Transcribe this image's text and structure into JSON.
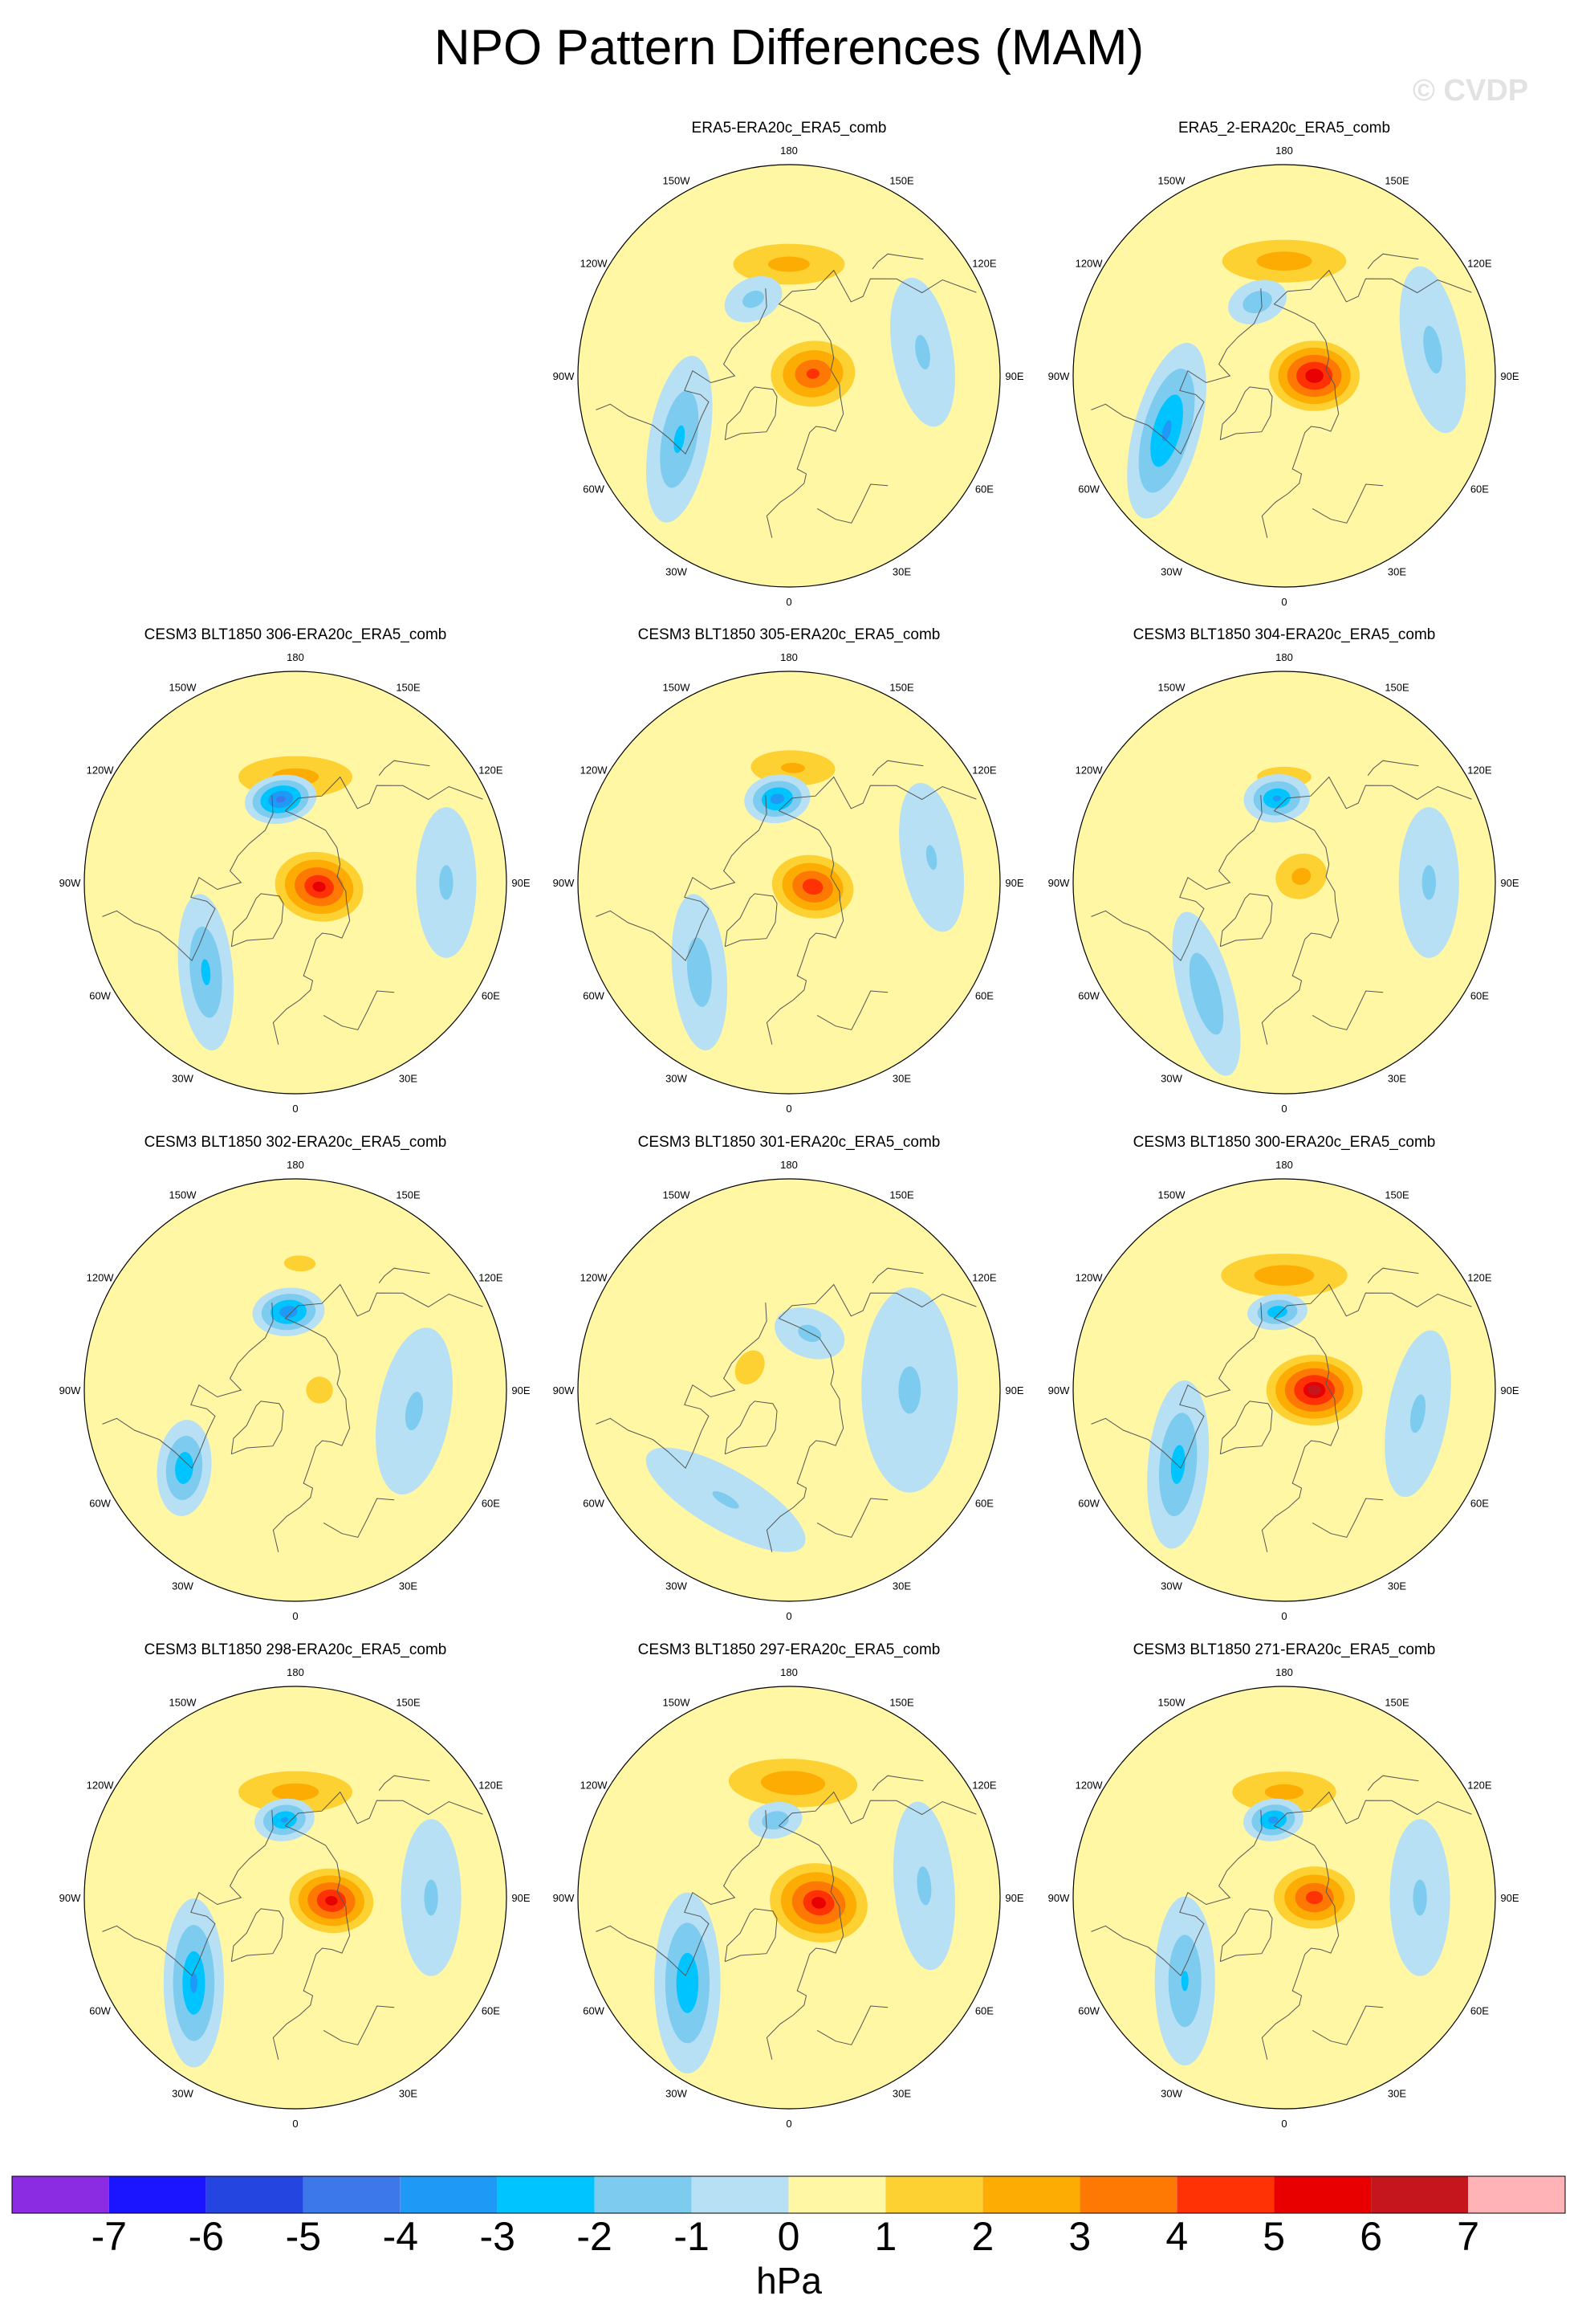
{
  "title": "NPO Pattern Differences (MAM)",
  "watermark": "© CVDP",
  "longitude_labels": {
    "lon_180": "180",
    "lon_150e": "150E",
    "lon_120e": "120E",
    "lon_90e": "90E",
    "lon_60e": "60E",
    "lon_30e": "30E",
    "lon_0": "0",
    "lon_30w": "30W",
    "lon_60w": "60W",
    "lon_90w": "90W",
    "lon_120w": "120W",
    "lon_150w": "150W"
  },
  "panels": [
    {
      "title": "ERA5-ERA20c_ERA5_comb",
      "features": [
        {
          "lat": 53,
          "lon": 180,
          "amp": 2.6,
          "w": 30,
          "h": 11,
          "rot": 0
        },
        {
          "lat": 62,
          "lon": 205,
          "amp": -1.6,
          "w": 10,
          "h": 7,
          "rot": 0
        },
        {
          "lat": 82,
          "lon": 95,
          "amp": 4.5,
          "w": 14,
          "h": 18,
          "rot": 0
        },
        {
          "lat": 48,
          "lon": 300,
          "amp": -2.4,
          "w": 28,
          "h": 10,
          "rot": 40
        },
        {
          "lat": 45,
          "lon": 100,
          "amp": -1.3,
          "w": 25,
          "h": 10,
          "rot": 0
        }
      ]
    },
    {
      "title": "ERA5_2-ERA20c_ERA5_comb",
      "features": [
        {
          "lat": 52,
          "lon": 180,
          "amp": 2.8,
          "w": 32,
          "h": 11,
          "rot": 0
        },
        {
          "lat": 64,
          "lon": 200,
          "amp": -2.0,
          "w": 10,
          "h": 7,
          "rot": 0
        },
        {
          "lat": 80,
          "lon": 90,
          "amp": 6.0,
          "w": 14,
          "h": 18,
          "rot": 0
        },
        {
          "lat": 47,
          "lon": 295,
          "amp": -3.4,
          "w": 30,
          "h": 11,
          "rot": 40
        },
        {
          "lat": 40,
          "lon": 100,
          "amp": -1.4,
          "w": 28,
          "h": 10,
          "rot": 0
        }
      ]
    },
    {
      "title": "CESM3 BLT1850 306-ERA20c_ERA5_comb",
      "features": [
        {
          "lat": 55,
          "lon": 180,
          "amp": 2.7,
          "w": 30,
          "h": 11,
          "rot": 0
        },
        {
          "lat": 62,
          "lon": 190,
          "amp": -4.6,
          "w": 12,
          "h": 8,
          "rot": 0
        },
        {
          "lat": 82,
          "lon": 80,
          "amp": 5.5,
          "w": 14,
          "h": 18,
          "rot": 0
        },
        {
          "lat": 48,
          "lon": 315,
          "amp": -2.4,
          "w": 26,
          "h": 9,
          "rot": 40
        },
        {
          "lat": 40,
          "lon": 90,
          "amp": -1.3,
          "w": 25,
          "h": 10,
          "rot": 0
        }
      ]
    },
    {
      "title": "CESM3 BLT1850 305-ERA20c_ERA5_comb",
      "features": [
        {
          "lat": 52,
          "lon": 178,
          "amp": 2.4,
          "w": 24,
          "h": 10,
          "rot": 0
        },
        {
          "lat": 62,
          "lon": 188,
          "amp": -3.8,
          "w": 11,
          "h": 8,
          "rot": 0
        },
        {
          "lat": 82,
          "lon": 80,
          "amp": 5.0,
          "w": 13,
          "h": 17,
          "rot": 0
        },
        {
          "lat": 48,
          "lon": 315,
          "amp": -1.8,
          "w": 26,
          "h": 9,
          "rot": 40
        },
        {
          "lat": 42,
          "lon": 100,
          "amp": -1.2,
          "w": 25,
          "h": 10,
          "rot": 0
        }
      ]
    },
    {
      "title": "CESM3 BLT1850 304-ERA20c_ERA5_comb",
      "features": [
        {
          "lat": 55,
          "lon": 180,
          "amp": 1.6,
          "w": 24,
          "h": 9,
          "rot": 0
        },
        {
          "lat": 62,
          "lon": 185,
          "amp": -3.4,
          "w": 11,
          "h": 8,
          "rot": 0
        },
        {
          "lat": 84,
          "lon": 110,
          "amp": 2.6,
          "w": 12,
          "h": 14,
          "rot": 0
        },
        {
          "lat": 45,
          "lon": 325,
          "amp": -2.0,
          "w": 28,
          "h": 9,
          "rot": 40
        },
        {
          "lat": 42,
          "lon": 90,
          "amp": -1.3,
          "w": 25,
          "h": 10,
          "rot": 0
        }
      ]
    },
    {
      "title": "CESM3 BLT1850 302-ERA20c_ERA5_comb",
      "features": [
        {
          "lat": 48,
          "lon": 178,
          "amp": 1.6,
          "w": 14,
          "h": 7,
          "rot": 0
        },
        {
          "lat": 64,
          "lon": 185,
          "amp": -4.0,
          "w": 12,
          "h": 8,
          "rot": 0
        },
        {
          "lat": 82,
          "lon": 90,
          "amp": 1.8,
          "w": 10,
          "h": 10,
          "rot": 0
        },
        {
          "lat": 45,
          "lon": 305,
          "amp": -3.0,
          "w": 16,
          "h": 9,
          "rot": 40
        },
        {
          "lat": 50,
          "lon": 80,
          "amp": -1.3,
          "w": 28,
          "h": 12,
          "rot": 0
        }
      ]
    },
    {
      "title": "CESM3 BLT1850 301-ERA20c_ERA5_comb",
      "features": [
        {
          "lat": 75,
          "lon": 240,
          "amp": 2.0,
          "w": 12,
          "h": 9,
          "rot": 0
        },
        {
          "lat": 70,
          "lon": 160,
          "amp": -1.5,
          "w": 12,
          "h": 8,
          "rot": 0
        },
        {
          "lat": 50,
          "lon": 90,
          "amp": -1.3,
          "w": 34,
          "h": 16,
          "rot": 0
        },
        {
          "lat": 48,
          "lon": 330,
          "amp": -1.2,
          "w": 30,
          "h": 10,
          "rot": 0
        }
      ]
    },
    {
      "title": "CESM3 BLT1850 300-ERA20c_ERA5_comb",
      "features": [
        {
          "lat": 52,
          "lon": 180,
          "amp": 2.9,
          "w": 32,
          "h": 11,
          "rot": 0
        },
        {
          "lat": 64,
          "lon": 185,
          "amp": -3.0,
          "w": 10,
          "h": 6,
          "rot": 0
        },
        {
          "lat": 80,
          "lon": 90,
          "amp": 6.2,
          "w": 14,
          "h": 19,
          "rot": 0
        },
        {
          "lat": 47,
          "lon": 305,
          "amp": -2.6,
          "w": 28,
          "h": 10,
          "rot": 40
        },
        {
          "lat": 45,
          "lon": 80,
          "amp": -1.3,
          "w": 28,
          "h": 10,
          "rot": 0
        }
      ]
    },
    {
      "title": "CESM3 BLT1850 298-ERA20c_ERA5_comb",
      "features": [
        {
          "lat": 55,
          "lon": 180,
          "amp": 2.7,
          "w": 30,
          "h": 11,
          "rot": 0
        },
        {
          "lat": 64,
          "lon": 188,
          "amp": -3.4,
          "w": 10,
          "h": 7,
          "rot": 0
        },
        {
          "lat": 78,
          "lon": 85,
          "amp": 5.6,
          "w": 13,
          "h": 17,
          "rot": 0
        },
        {
          "lat": 46,
          "lon": 310,
          "amp": -3.2,
          "w": 28,
          "h": 10,
          "rot": 40
        },
        {
          "lat": 45,
          "lon": 90,
          "amp": -1.3,
          "w": 26,
          "h": 10,
          "rot": 0
        }
      ]
    },
    {
      "title": "CESM3 BLT1850 297-ERA20c_ERA5_comb",
      "features": [
        {
          "lat": 52,
          "lon": 178,
          "amp": 3.0,
          "w": 32,
          "h": 12,
          "rot": 0
        },
        {
          "lat": 64,
          "lon": 190,
          "amp": -2.0,
          "w": 9,
          "h": 6,
          "rot": 0
        },
        {
          "lat": 80,
          "lon": 80,
          "amp": 5.4,
          "w": 16,
          "h": 20,
          "rot": 0
        },
        {
          "lat": 46,
          "lon": 310,
          "amp": -3.0,
          "w": 30,
          "h": 11,
          "rot": 40
        },
        {
          "lat": 45,
          "lon": 95,
          "amp": -1.3,
          "w": 28,
          "h": 10,
          "rot": 0
        }
      ]
    },
    {
      "title": "CESM3 BLT1850 271-ERA20c_ERA5_comb",
      "features": [
        {
          "lat": 55,
          "lon": 180,
          "amp": 2.6,
          "w": 28,
          "h": 11,
          "rot": 0
        },
        {
          "lat": 64,
          "lon": 188,
          "amp": -3.6,
          "w": 10,
          "h": 7,
          "rot": 0
        },
        {
          "lat": 80,
          "lon": 90,
          "amp": 4.8,
          "w": 13,
          "h": 17,
          "rot": 0
        },
        {
          "lat": 47,
          "lon": 310,
          "amp": -2.2,
          "w": 28,
          "h": 10,
          "rot": 40
        },
        {
          "lat": 45,
          "lon": 90,
          "amp": -1.3,
          "w": 26,
          "h": 10,
          "rot": 0
        }
      ]
    }
  ],
  "colorbar": {
    "units": "hPa",
    "labels": [
      "-7",
      "-6",
      "-5",
      "-4",
      "-3",
      "-2",
      "-1",
      "0",
      "1",
      "2",
      "3",
      "4",
      "5",
      "6",
      "7"
    ],
    "colors": [
      "#8b2be2",
      "#1a14ff",
      "#2545e0",
      "#3d78ea",
      "#1e99f5",
      "#00c4ff",
      "#7ecbf0",
      "#b8e0f4",
      "#fff7a4",
      "#fdd132",
      "#fcac02",
      "#fd7903",
      "#ff3205",
      "#e80000",
      "#c4161c",
      "#ffb3b6"
    ]
  }
}
